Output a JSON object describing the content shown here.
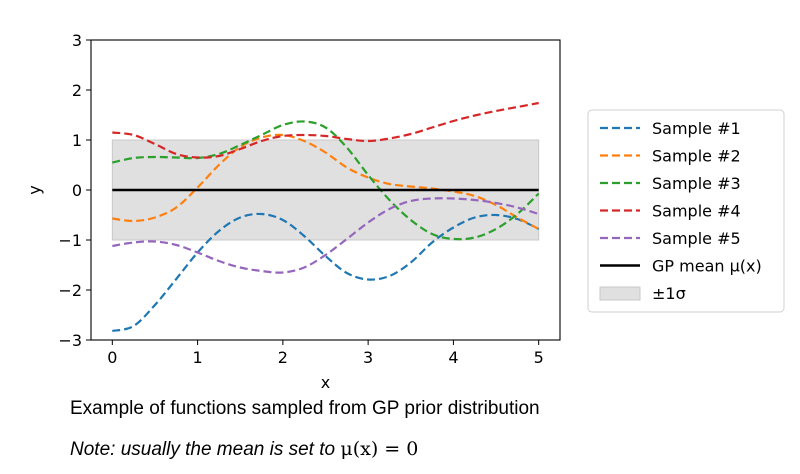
{
  "chart_data": {
    "type": "line",
    "title": "",
    "xlabel": "x",
    "ylabel": "y",
    "xlim": [
      -0.25,
      5.25
    ],
    "ylim": [
      -3,
      3
    ],
    "x_ticks": [
      "0",
      "1",
      "2",
      "3",
      "4",
      "5"
    ],
    "y_ticks": [
      "3",
      "2",
      "1",
      "0",
      "−1",
      "−2",
      "−3"
    ],
    "x": [
      0,
      0.25,
      0.5,
      0.75,
      1.0,
      1.25,
      1.5,
      1.75,
      2.0,
      2.25,
      2.5,
      2.75,
      3.0,
      3.25,
      3.5,
      3.75,
      4.0,
      4.25,
      4.5,
      4.75,
      5.0
    ],
    "series": [
      {
        "name": "Sample #1",
        "color": "#1f77b4",
        "values": [
          -2.82,
          -2.72,
          -2.3,
          -1.78,
          -1.25,
          -0.82,
          -0.55,
          -0.48,
          -0.6,
          -0.92,
          -1.32,
          -1.66,
          -1.79,
          -1.72,
          -1.45,
          -1.05,
          -0.75,
          -0.55,
          -0.5,
          -0.58,
          -0.78
        ]
      },
      {
        "name": "Sample #2",
        "color": "#ff7f0e",
        "values": [
          -0.57,
          -0.62,
          -0.55,
          -0.35,
          0.05,
          0.5,
          0.86,
          1.05,
          1.1,
          0.98,
          0.75,
          0.45,
          0.25,
          0.12,
          0.07,
          0.03,
          -0.03,
          -0.12,
          -0.3,
          -0.55,
          -0.78
        ]
      },
      {
        "name": "Sample #3",
        "color": "#2ca02c",
        "values": [
          0.55,
          0.64,
          0.66,
          0.65,
          0.64,
          0.72,
          0.9,
          1.1,
          1.3,
          1.37,
          1.25,
          0.85,
          0.3,
          -0.2,
          -0.6,
          -0.88,
          -0.98,
          -0.95,
          -0.78,
          -0.48,
          -0.07
        ]
      },
      {
        "name": "Sample #4",
        "color": "#d62728",
        "values": [
          1.15,
          1.1,
          0.92,
          0.72,
          0.65,
          0.68,
          0.82,
          0.98,
          1.08,
          1.1,
          1.08,
          1.02,
          0.98,
          1.03,
          1.12,
          1.25,
          1.38,
          1.49,
          1.58,
          1.66,
          1.74
        ]
      },
      {
        "name": "Sample #5",
        "color": "#9467bd",
        "values": [
          -1.12,
          -1.05,
          -1.03,
          -1.1,
          -1.25,
          -1.42,
          -1.55,
          -1.62,
          -1.65,
          -1.55,
          -1.3,
          -0.98,
          -0.65,
          -0.38,
          -0.22,
          -0.17,
          -0.17,
          -0.2,
          -0.26,
          -0.35,
          -0.48
        ]
      },
      {
        "name": "GP mean μ(x)",
        "color": "#000000",
        "values": [
          0,
          0,
          0,
          0,
          0,
          0,
          0,
          0,
          0,
          0,
          0,
          0,
          0,
          0,
          0,
          0,
          0,
          0,
          0,
          0,
          0
        ]
      }
    ],
    "band": {
      "name": "±1σ",
      "lower": -1,
      "upper": 1,
      "x_range": [
        0,
        5
      ],
      "color": "#e0e0e0"
    },
    "legend": {
      "placement": "right",
      "entries": [
        {
          "label": "Sample #1",
          "style": "dashed",
          "color": "#1f77b4"
        },
        {
          "label": "Sample #2",
          "style": "dashed",
          "color": "#ff7f0e"
        },
        {
          "label": "Sample #3",
          "style": "dashed",
          "color": "#2ca02c"
        },
        {
          "label": "Sample #4",
          "style": "dashed",
          "color": "#d62728"
        },
        {
          "label": "Sample #5",
          "style": "dashed",
          "color": "#9467bd"
        },
        {
          "label": "GP mean μ(x)",
          "style": "solid",
          "color": "#000000"
        },
        {
          "label": "±1σ",
          "style": "patch",
          "color": "#e0e0e0"
        }
      ]
    }
  },
  "captions": {
    "line1": "Example of functions sampled from GP prior distribution",
    "line2_text": "Note: usually the mean is set to ",
    "line2_math": "μ(x) = 0"
  }
}
